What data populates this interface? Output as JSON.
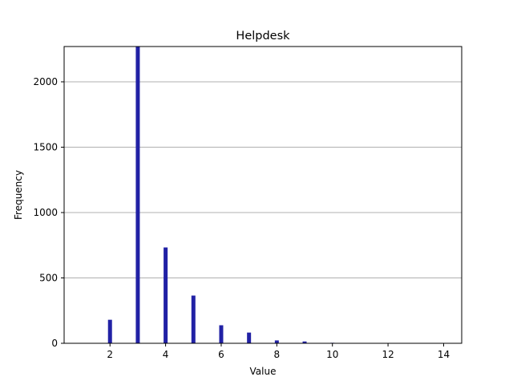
{
  "chart_data": {
    "type": "bar",
    "title": "Helpdesk",
    "xlabel": "Value",
    "ylabel": "Frequency",
    "xlim": [
      0.35,
      14.65
    ],
    "ylim": [
      0,
      2270
    ],
    "grid": "y",
    "bar_color": "#2121a5",
    "grid_color": "#b0b0b0",
    "xticks": [
      2,
      4,
      6,
      8,
      10,
      12,
      14
    ],
    "yticks": [
      0,
      500,
      1000,
      1500,
      2000
    ],
    "x": [
      2,
      3,
      4,
      5,
      6,
      7,
      8,
      9,
      10
    ],
    "values": [
      180,
      2270,
      733,
      365,
      138,
      82,
      22,
      14,
      4
    ]
  }
}
